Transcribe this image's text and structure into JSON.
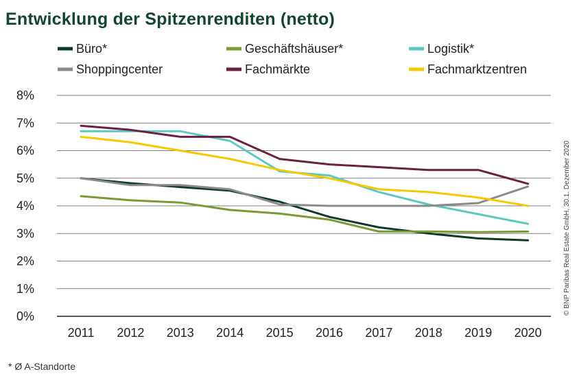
{
  "chart_data": {
    "type": "line",
    "title": "Entwicklung der Spitzenrenditen (netto)",
    "x": [
      "2011",
      "2012",
      "2013",
      "2014",
      "2015",
      "2016",
      "2017",
      "2018",
      "2019",
      "2020"
    ],
    "xlabel": "",
    "ylabel": "",
    "ylim": [
      0,
      8
    ],
    "yticks": [
      "0%",
      "1%",
      "2%",
      "3%",
      "4%",
      "5%",
      "6%",
      "7%",
      "8%"
    ],
    "grid": true,
    "legend_position": "top",
    "series": [
      {
        "name": "Büro*",
        "color": "#0d3b2a",
        "values": [
          5.0,
          4.82,
          4.68,
          4.55,
          4.15,
          3.6,
          3.22,
          3.0,
          2.82,
          2.75
        ]
      },
      {
        "name": "Geschäftshäuser*",
        "color": "#7a9a33",
        "values": [
          4.35,
          4.2,
          4.12,
          3.85,
          3.72,
          3.5,
          3.07,
          3.07,
          3.05,
          3.07
        ]
      },
      {
        "name": "Logistik*",
        "color": "#5cc8c4",
        "values": [
          6.7,
          6.7,
          6.7,
          6.35,
          5.25,
          5.1,
          4.5,
          4.05,
          3.7,
          3.35
        ]
      },
      {
        "name": "Shoppingcenter",
        "color": "#8a8a8a",
        "values": [
          5.0,
          4.75,
          4.75,
          4.6,
          4.05,
          4.0,
          4.0,
          4.0,
          4.1,
          4.7
        ]
      },
      {
        "name": "Fachmärkte",
        "color": "#6b1f42",
        "values": [
          6.9,
          6.75,
          6.5,
          6.5,
          5.7,
          5.5,
          5.4,
          5.3,
          5.3,
          4.8
        ]
      },
      {
        "name": "Fachmarktzentren",
        "color": "#f7c800",
        "values": [
          6.5,
          6.3,
          6.0,
          5.7,
          5.3,
          5.0,
          4.6,
          4.5,
          4.3,
          4.0
        ]
      }
    ]
  },
  "footnote": "* Ø A-Standorte",
  "source": "© BNP Paribas Real Estate GmbH, 30.1. Dezember 2020"
}
